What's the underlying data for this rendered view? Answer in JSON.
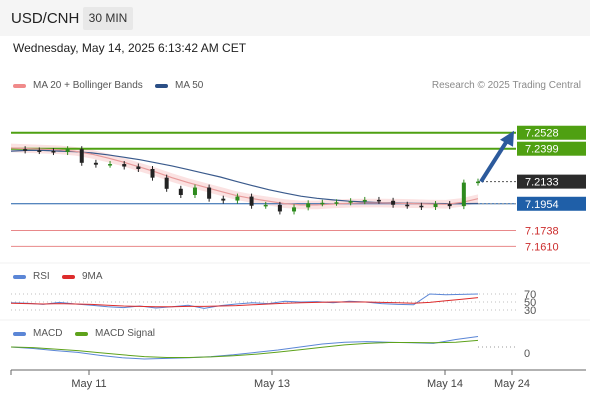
{
  "header": {
    "symbol": "USD/CNH",
    "timeframe": "30 MIN"
  },
  "datetime": "Wednesday, May 14, 2025 6:13:42 AM CET",
  "legend": {
    "ma20": "MA 20 + Bollinger Bands",
    "ma50": "MA 50",
    "rsi": "RSI",
    "ma9": "9MA",
    "macd": "MACD",
    "macd_signal": "MACD Signal"
  },
  "credit": "Research © 2025 Trading Central",
  "colors": {
    "green_level": "#4fa012",
    "blue_level": "#1f5fa8",
    "red_level": "#e8888a",
    "ma50": "#3a5a8c",
    "ma20": "#e79a9a",
    "band": "#fbe2e2",
    "bull": "#2e8b1e",
    "bear": "#222222",
    "arrow": "#2c5a9c",
    "rsi": "#5b86d6",
    "ma9": "#dd2c2c",
    "macd": "#5b86d6",
    "signal": "#5ea21b"
  },
  "chart_data": [
    {
      "type": "line",
      "title": "USD/CNH 30 MIN",
      "x_tick_labels": [
        "May 11",
        "May 13",
        "May 14",
        "May 24"
      ],
      "price_levels": [
        {
          "value": 7.2528,
          "label": "7.2528",
          "kind": "resistance"
        },
        {
          "value": 7.2399,
          "label": "7.2399",
          "kind": "resistance"
        },
        {
          "value": 7.2133,
          "label": "7.2133",
          "kind": "current"
        },
        {
          "value": 7.1954,
          "label": "7.1954",
          "kind": "pivot"
        },
        {
          "value": 7.1738,
          "label": "7.1738",
          "kind": "support"
        },
        {
          "value": 7.161,
          "label": "7.1610",
          "kind": "support"
        }
      ],
      "forecast_arrow": {
        "from": 7.2133,
        "to": 7.2528
      },
      "series": [
        {
          "name": "MA 50",
          "values": [
            7.238,
            7.2385,
            7.2385,
            7.238,
            7.2375,
            7.2365,
            7.235,
            7.233,
            7.231,
            7.2285,
            7.226,
            7.223,
            7.22,
            7.217,
            7.2135,
            7.21,
            7.2068,
            7.204,
            7.2015,
            7.1998,
            7.1985,
            7.1975,
            7.1968,
            7.1963,
            7.196,
            7.1958,
            7.1956,
            7.1955,
            7.1955,
            7.1956
          ]
        },
        {
          "name": "MA 20 + Bollinger Bands",
          "values": [
            7.2405,
            7.24,
            7.2395,
            7.239,
            7.2378,
            7.2355,
            7.2325,
            7.229,
            7.225,
            7.221,
            7.2165,
            7.2125,
            7.209,
            7.2055,
            7.202,
            7.1995,
            7.1975,
            7.1955,
            7.1945,
            7.1945,
            7.1952,
            7.1958,
            7.196,
            7.196,
            7.1958,
            7.1955,
            7.1952,
            7.195,
            7.1965,
            7.1995
          ]
        },
        {
          "name": "Price",
          "values": [
            7.2395,
            7.2385,
            7.238,
            7.2372,
            7.2395,
            7.2285,
            7.227,
            7.2275,
            7.2255,
            7.2235,
            7.2165,
            7.2075,
            7.2025,
            7.2085,
            7.1995,
            7.198,
            7.2012,
            7.1938,
            7.1945,
            7.1892,
            7.1925,
            7.1958,
            7.1962,
            7.1966,
            7.1975,
            7.1985,
            7.1978,
            7.1946,
            7.1938,
            7.1928,
            7.1952,
            7.1935,
            7.2125,
            7.2133
          ]
        }
      ]
    },
    {
      "type": "line",
      "title": "RSI",
      "y_tick_labels": [
        "70",
        "50",
        "30"
      ],
      "series": [
        {
          "name": "RSI",
          "values": [
            48,
            47,
            44,
            49,
            45,
            42,
            38,
            36,
            40,
            35,
            38,
            42,
            34,
            41,
            45,
            48,
            46,
            52,
            50,
            51,
            48,
            52,
            50,
            46,
            44,
            43,
            70,
            68,
            69,
            70
          ]
        },
        {
          "name": "9MA",
          "values": [
            47,
            46,
            45,
            46,
            45,
            44,
            42,
            40,
            39,
            38,
            38,
            39,
            39,
            40,
            41,
            43,
            45,
            47,
            48,
            49,
            50,
            50,
            50,
            49,
            48,
            47,
            49,
            53,
            57,
            61
          ]
        }
      ]
    },
    {
      "type": "line",
      "title": "MACD",
      "y_tick_labels": [
        "0"
      ],
      "series": [
        {
          "name": "MACD",
          "values": [
            0.0,
            -0.0005,
            -0.0012,
            -0.0018,
            -0.0028,
            -0.0036,
            -0.004,
            -0.0038,
            -0.0036,
            -0.0032,
            -0.0026,
            -0.0018,
            -0.001,
            0.0,
            0.001,
            0.0016,
            0.0018,
            0.0016,
            0.0014,
            0.0012,
            0.0025,
            0.0035
          ]
        },
        {
          "name": "MACD Signal",
          "values": [
            0.0,
            -0.0002,
            -0.0007,
            -0.0012,
            -0.0019,
            -0.0026,
            -0.0032,
            -0.0035,
            -0.0035,
            -0.0033,
            -0.0029,
            -0.0024,
            -0.0017,
            -0.0009,
            -0.0001,
            0.0007,
            0.0012,
            0.0015,
            0.0015,
            0.0014,
            0.0016,
            0.0022
          ]
        }
      ]
    }
  ]
}
